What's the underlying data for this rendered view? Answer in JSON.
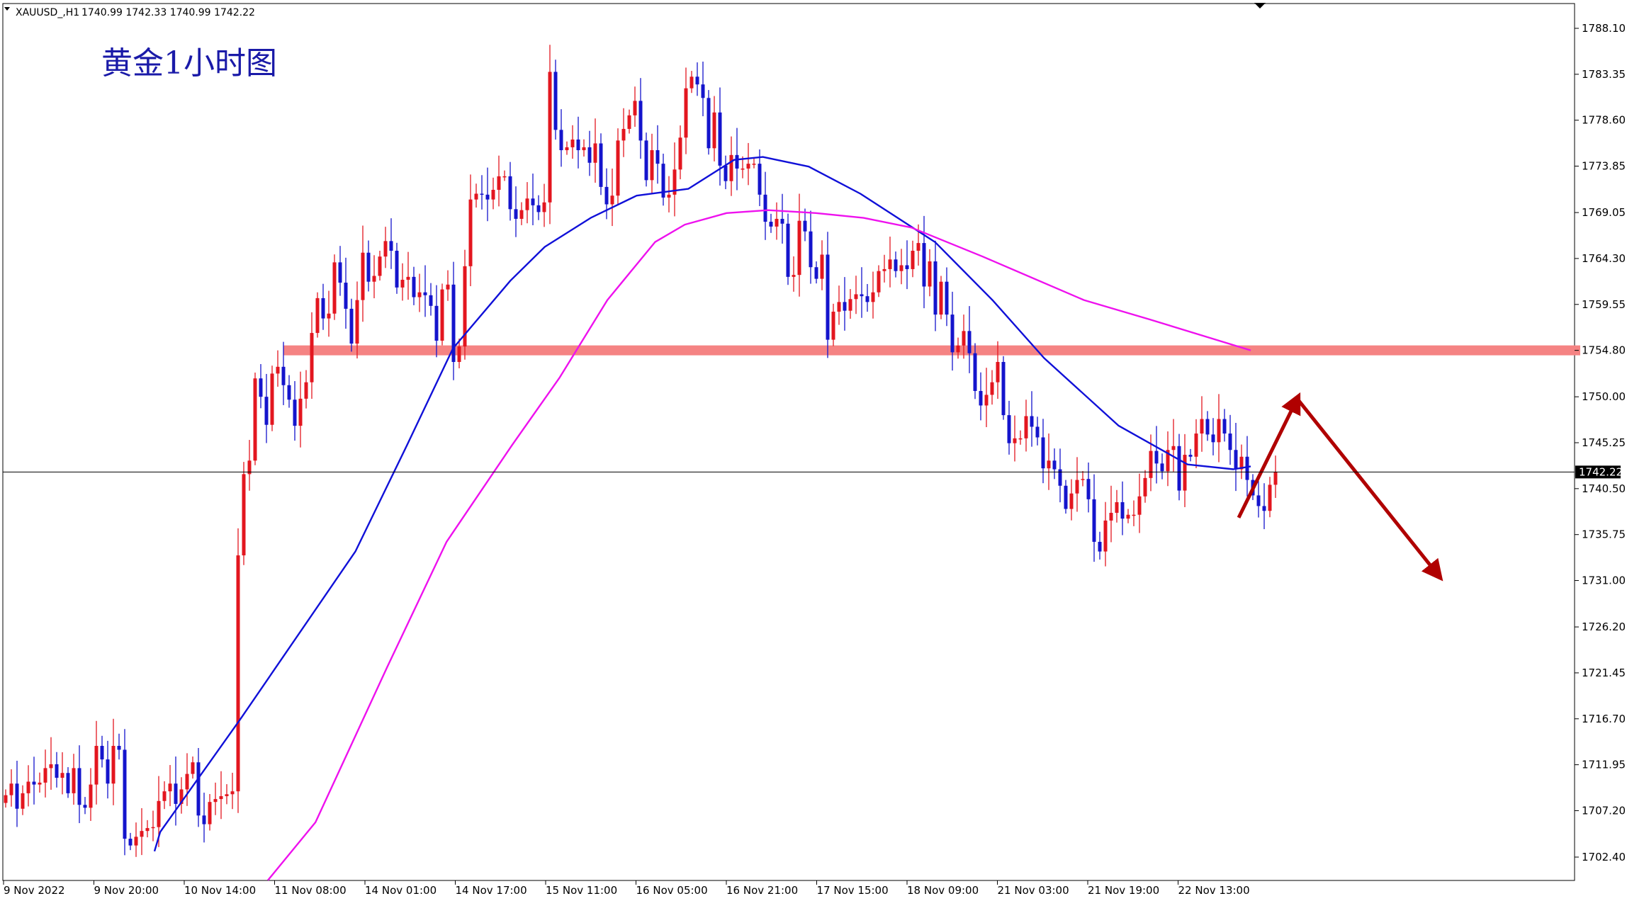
{
  "header": {
    "symbol": "XAUUSD_,H1",
    "ohlc": "1740.99 1742.33 1740.99 1742.22"
  },
  "chart_data": {
    "type": "candlestick",
    "title": "黄金1小时图",
    "current_price": 1742.22,
    "current_price_label": "1742.22",
    "ylim": [
      1700.0,
      1790.4
    ],
    "y_ticks": [
      "1788.10",
      "1783.35",
      "1778.60",
      "1773.85",
      "1769.05",
      "1764.30",
      "1759.55",
      "1754.80",
      "1750.00",
      "1745.25",
      "1740.50",
      "1735.75",
      "1731.00",
      "1726.20",
      "1721.45",
      "1716.70",
      "1711.95",
      "1707.20",
      "1702.40"
    ],
    "x_ticks": [
      "9 Nov 2022",
      "9 Nov 20:00",
      "10 Nov 14:00",
      "11 Nov 08:00",
      "14 Nov 01:00",
      "14 Nov 17:00",
      "15 Nov 11:00",
      "16 Nov 05:00",
      "16 Nov 21:00",
      "17 Nov 15:00",
      "18 Nov 09:00",
      "21 Nov 03:00",
      "21 Nov 19:00",
      "22 Nov 13:00"
    ],
    "colors": {
      "up": "#e3161f",
      "down": "#1414cc",
      "ma_fast": "#1010d8",
      "ma_slow": "#ee11ee",
      "resistance": "#f58383",
      "arrow": "#b00000"
    },
    "resistance_level": 1754.8,
    "closes": [
      1708.8,
      1710.0,
      1707.4,
      1709.0,
      1710.2,
      1709.9,
      1710.1,
      1711.6,
      1712.0,
      1710.6,
      1711.1,
      1709.0,
      1711.6,
      1707.8,
      1707.5,
      1709.9,
      1713.9,
      1712.5,
      1710.0,
      1713.9,
      1713.5,
      1704.3,
      1703.6,
      1704.5,
      1705.1,
      1705.4,
      1705.5,
      1708.2,
      1709.2,
      1710.0,
      1707.9,
      1709.4,
      1711.0,
      1712.2,
      1706.7,
      1705.8,
      1708.1,
      1708.4,
      1708.7,
      1708.9,
      1709.2,
      1733.6,
      1742.0,
      1743.4,
      1751.9,
      1750.0,
      1747.1,
      1752.4,
      1753.1,
      1751.2,
      1749.7,
      1747.0,
      1749.8,
      1751.5,
      1756.6,
      1760.2,
      1758.1,
      1758.6,
      1763.9,
      1761.8,
      1759.1,
      1755.5,
      1760.0,
      1764.9,
      1761.9,
      1762.5,
      1764.5,
      1766.1,
      1765.1,
      1761.3,
      1762.1,
      1762.4,
      1760.3,
      1760.8,
      1760.5,
      1759.4,
      1755.8,
      1761.1,
      1761.6,
      1753.6,
      1755.2,
      1763.5,
      1770.4,
      1771.0,
      1770.9,
      1770.4,
      1771.4,
      1772.8,
      1772.8,
      1769.4,
      1768.4,
      1769.3,
      1770.5,
      1769.8,
      1769.1,
      1770.1,
      1783.6,
      1777.6,
      1775.5,
      1775.8,
      1776.6,
      1775.5,
      1775.8,
      1774.2,
      1776.2,
      1771.7,
      1769.9,
      1770.8,
      1776.5,
      1777.7,
      1779.1,
      1780.6,
      1776.5,
      1772.4,
      1775.5,
      1774.1,
      1770.6,
      1770.9,
      1773.5,
      1776.8,
      1781.9,
      1783.1,
      1782.3,
      1780.9,
      1775.7,
      1779.4,
      1773.9,
      1772.3,
      1775.0,
      1773.6,
      1773.6,
      1774.1,
      1774.1,
      1770.9,
      1768.1,
      1767.6,
      1768.4,
      1767.9,
      1762.4,
      1762.6,
      1768.2,
      1767.1,
      1763.4,
      1762.2,
      1764.7,
      1755.9,
      1758.8,
      1759.8,
      1758.9,
      1760.1,
      1760.6,
      1760.4,
      1759.8,
      1760.8,
      1763.0,
      1763.2,
      1764.2,
      1763.0,
      1763.6,
      1763.2,
      1765.1,
      1765.9,
      1761.4,
      1764.0,
      1758.5,
      1761.9,
      1758.5,
      1754.6,
      1755.3,
      1756.8,
      1754.5,
      1750.6,
      1749.1,
      1750.2,
      1751.5,
      1753.6,
      1748.1,
      1745.2,
      1745.7,
      1745.7,
      1748.0,
      1746.9,
      1745.8,
      1742.6,
      1743.4,
      1742.5,
      1740.8,
      1738.4,
      1740.0,
      1741.4,
      1741.5,
      1739.4,
      1735.0,
      1734.0,
      1737.2,
      1738.0,
      1739.1,
      1737.4,
      1737.8,
      1737.8,
      1739.7,
      1741.6,
      1744.4,
      1743.1,
      1742.3,
      1744.5,
      1744.9,
      1740.3,
      1744.0,
      1743.8,
      1746.2,
      1747.7,
      1746.1,
      1745.3,
      1747.7,
      1746.2,
      1744.5,
      1742.5,
      1743.8,
      1741.4,
      1739.8,
      1738.7,
      1738.2,
      1740.9,
      1742.22
    ],
    "ma_fast_points": [
      [
        1703.0,
        1700
      ],
      [
        1705.0,
        1695
      ],
      [
        1716.7,
        1625
      ],
      [
        1734.0,
        1525
      ],
      [
        1745.0,
        1480
      ],
      [
        1755.0,
        1440
      ],
      [
        1762.0,
        1390
      ],
      [
        1765.5,
        1360
      ],
      [
        1768.5,
        1320
      ],
      [
        1770.8,
        1280
      ],
      [
        1771.5,
        1235
      ],
      [
        1774.5,
        1195
      ],
      [
        1774.8,
        1170
      ],
      [
        1773.8,
        1130
      ],
      [
        1771.0,
        1085
      ],
      [
        1766.0,
        1020
      ],
      [
        1760.0,
        970
      ],
      [
        1754.0,
        925
      ],
      [
        1747.0,
        860
      ],
      [
        1743.0,
        800
      ],
      [
        1742.5,
        760
      ],
      [
        1742.8,
        745
      ]
    ],
    "ma_slow_points": [
      [
        1700.0,
        1730
      ],
      [
        1706.0,
        1690
      ],
      [
        1722.0,
        1630
      ],
      [
        1735.0,
        1580
      ],
      [
        1745.0,
        1525
      ],
      [
        1752.0,
        1485
      ],
      [
        1760.0,
        1445
      ],
      [
        1766.0,
        1405
      ],
      [
        1767.8,
        1380
      ],
      [
        1769.0,
        1345
      ],
      [
        1769.3,
        1310
      ],
      [
        1769.0,
        1270
      ],
      [
        1768.5,
        1230
      ],
      [
        1767.5,
        1190
      ],
      [
        1764.5,
        1130
      ],
      [
        1760.0,
        1045
      ],
      [
        1758.0,
        990
      ],
      [
        1754.8,
        905
      ]
    ],
    "annotation_arrows": [
      {
        "from": [
          1737.5,
          763
        ],
        "to": [
          1749.8,
          792
        ]
      },
      {
        "from": [
          1749.8,
          792
        ],
        "to": [
          1731.5,
          862
        ]
      }
    ]
  }
}
